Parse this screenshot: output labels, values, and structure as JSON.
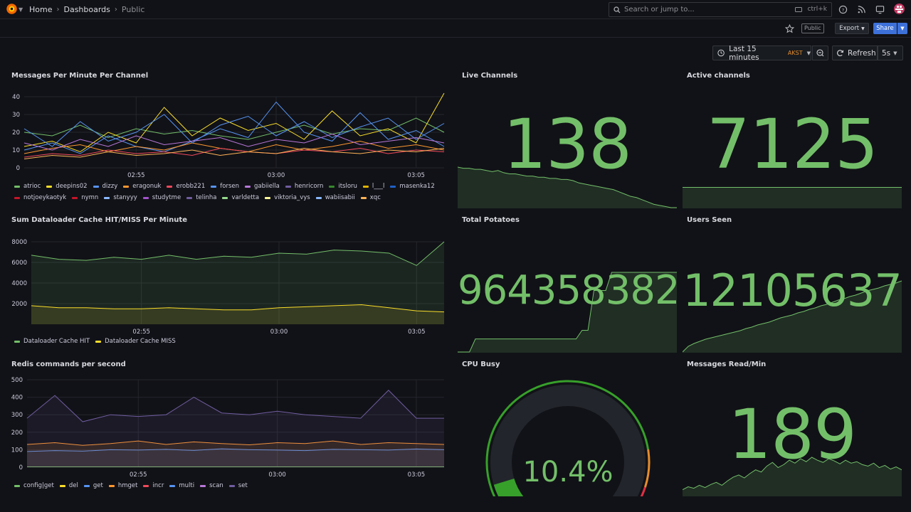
{
  "nav": {
    "breadcrumbs": [
      "Home",
      "Dashboards",
      "Public"
    ],
    "search_placeholder": "Search or jump to...",
    "search_shortcut": "ctrl+k"
  },
  "toolbar": {
    "public_badge": "Public",
    "export_label": "Export",
    "share_label": "Share",
    "time_range": "Last 15 minutes",
    "timezone": "AKST",
    "refresh_label": "Refresh",
    "refresh_interval": "5s"
  },
  "colors": {
    "green": "#73bf69",
    "yellow": "#fade2a",
    "purple": "#b877d9",
    "blue": "#5794f2",
    "orange": "#ff9830",
    "red": "#f2495c"
  },
  "panels": {
    "messages": {
      "title": "Messages Per Minute Per Channel",
      "legend": [
        {
          "name": "atrioc",
          "color": "#73bf69"
        },
        {
          "name": "deepins02",
          "color": "#fade2a"
        },
        {
          "name": "dizzy",
          "color": "#5794f2"
        },
        {
          "name": "eragonuk",
          "color": "#ff9830"
        },
        {
          "name": "erobb221",
          "color": "#f2495c"
        },
        {
          "name": "forsen",
          "color": "#5794f2"
        },
        {
          "name": "gabiiella",
          "color": "#b877d9"
        },
        {
          "name": "henricorn",
          "color": "#705da0"
        },
        {
          "name": "itsloru",
          "color": "#37872d"
        },
        {
          "name": "l___l",
          "color": "#e0b400"
        },
        {
          "name": "masenka12",
          "color": "#1f60c4"
        },
        {
          "name": "notjoeykaotyk",
          "color": "#c4162a"
        },
        {
          "name": "nymn",
          "color": "#c4162a"
        },
        {
          "name": "stanyyy",
          "color": "#8ab8ff"
        },
        {
          "name": "studytme",
          "color": "#a352cc"
        },
        {
          "name": "telinha",
          "color": "#705da0"
        },
        {
          "name": "varldetta",
          "color": "#96d98d"
        },
        {
          "name": "viktoria_vys",
          "color": "#fff899"
        },
        {
          "name": "wabiisabii",
          "color": "#8ab8ff"
        },
        {
          "name": "xqc",
          "color": "#ffb357"
        }
      ]
    },
    "dataloader": {
      "title": "Sum Dataloader Cache HIT/MISS Per Minute",
      "legend": [
        {
          "name": "Dataloader Cache HIT",
          "color": "#73bf69"
        },
        {
          "name": "Dataloader Cache MISS",
          "color": "#fade2a"
        }
      ]
    },
    "redis": {
      "title": "Redis commands per second",
      "legend": [
        {
          "name": "config|get",
          "color": "#73bf69"
        },
        {
          "name": "del",
          "color": "#fade2a"
        },
        {
          "name": "get",
          "color": "#5794f2"
        },
        {
          "name": "hmget",
          "color": "#ff9830"
        },
        {
          "name": "incr",
          "color": "#f2495c"
        },
        {
          "name": "multi",
          "color": "#5794f2"
        },
        {
          "name": "scan",
          "color": "#b877d9"
        },
        {
          "name": "set",
          "color": "#705da0"
        }
      ]
    },
    "live_channels": {
      "title": "Live Channels",
      "value": "138",
      "trend": [
        36,
        35,
        35,
        34,
        34,
        33,
        32,
        33,
        31,
        30,
        30,
        29,
        28,
        28,
        27,
        27,
        26,
        26,
        25,
        25,
        24,
        22,
        21,
        20,
        19,
        18,
        17,
        16,
        14,
        12,
        10,
        9,
        7,
        5,
        3,
        2,
        1,
        0,
        0
      ]
    },
    "active_channels": {
      "title": "Active channels",
      "value": "7125",
      "trend": [
        10,
        10,
        10,
        10,
        10,
        10,
        10,
        10,
        10,
        10,
        10,
        10,
        10,
        10,
        10,
        10,
        10,
        10,
        10,
        10,
        10,
        10,
        10,
        10,
        10,
        10,
        10,
        10,
        10,
        10
      ]
    },
    "total_potatoes": {
      "title": "Total Potatoes",
      "value": "964358382",
      "trend": [
        0,
        0,
        0,
        18,
        18,
        18,
        18,
        18,
        18,
        18,
        18,
        18,
        18,
        18,
        18,
        18,
        18,
        18,
        18,
        18,
        18,
        30,
        30,
        85,
        85,
        85,
        110,
        110,
        110,
        110,
        110,
        110,
        110,
        110,
        110,
        110,
        110,
        110
      ]
    },
    "users_seen": {
      "title": "Users Seen",
      "value": "12105637",
      "trend": [
        0,
        8,
        12,
        15,
        18,
        20,
        22,
        24,
        26,
        28,
        30,
        33,
        35,
        38,
        40,
        42,
        45,
        48,
        50,
        52,
        55,
        57,
        60,
        62,
        65,
        67,
        70,
        73,
        75,
        78,
        80,
        83,
        86,
        88,
        90,
        93,
        95,
        97,
        100
      ]
    },
    "cpu_busy": {
      "title": "CPU Busy",
      "value": "10.4%",
      "percent": 10.4
    },
    "messages_read": {
      "title": "Messages Read/Min",
      "value": "189",
      "trend": [
        8,
        12,
        10,
        14,
        11,
        15,
        18,
        14,
        20,
        25,
        28,
        24,
        30,
        35,
        32,
        40,
        45,
        38,
        42,
        48,
        44,
        50,
        46,
        52,
        48,
        45,
        50,
        47,
        43,
        48,
        44,
        46,
        42,
        40,
        44,
        38,
        41,
        36,
        39,
        35
      ]
    }
  },
  "chart_data": [
    {
      "type": "line",
      "title": "Messages Per Minute Per Channel",
      "x": [
        "02:51",
        "02:52",
        "02:53",
        "02:54",
        "02:55",
        "02:56",
        "02:57",
        "02:58",
        "02:59",
        "03:00",
        "03:01",
        "03:02",
        "03:03",
        "03:04",
        "03:05",
        "03:06"
      ],
      "ylim": [
        0,
        40
      ],
      "ticks": [
        0,
        10,
        20,
        30,
        40
      ],
      "xticks": [
        "02:55",
        "03:00",
        "03:05"
      ],
      "series": [
        {
          "name": "atrioc",
          "values": [
            20,
            18,
            24,
            17,
            22,
            19,
            21,
            18,
            16,
            20,
            24,
            19,
            22,
            21,
            28,
            20
          ]
        },
        {
          "name": "deepins02",
          "values": [
            12,
            15,
            9,
            20,
            14,
            34,
            18,
            28,
            21,
            25,
            16,
            32,
            18,
            22,
            14,
            42
          ]
        },
        {
          "name": "dizzy",
          "values": [
            10,
            14,
            8,
            18,
            12,
            9,
            15,
            22,
            17,
            37,
            20,
            15,
            31,
            16,
            21,
            12
          ]
        },
        {
          "name": "eragonuk",
          "values": [
            8,
            11,
            13,
            9,
            12,
            10,
            14,
            11,
            9,
            13,
            10,
            12,
            15,
            11,
            13,
            10
          ]
        },
        {
          "name": "erobb221",
          "values": [
            6,
            8,
            7,
            10,
            8,
            9,
            7,
            11,
            9,
            8,
            10,
            9,
            11,
            8,
            10,
            9
          ]
        },
        {
          "name": "forsen",
          "values": [
            22,
            12,
            26,
            15,
            20,
            30,
            14,
            24,
            29,
            18,
            26,
            17,
            23,
            28,
            16,
            25
          ]
        },
        {
          "name": "gabiiella",
          "values": [
            14,
            10,
            16,
            12,
            18,
            13,
            15,
            17,
            12,
            16,
            14,
            19,
            13,
            15,
            17,
            14
          ]
        },
        {
          "name": "xqc",
          "values": [
            5,
            7,
            6,
            9,
            7,
            8,
            10,
            7,
            9,
            8,
            11,
            9,
            8,
            10,
            9,
            11
          ]
        }
      ]
    },
    {
      "type": "area",
      "title": "Sum Dataloader Cache HIT/MISS Per Minute",
      "x": [
        "02:51",
        "02:52",
        "02:53",
        "02:54",
        "02:55",
        "02:56",
        "02:57",
        "02:58",
        "02:59",
        "03:00",
        "03:01",
        "03:02",
        "03:03",
        "03:04",
        "03:05",
        "03:06"
      ],
      "ylim": [
        0,
        8000
      ],
      "ticks": [
        2000,
        4000,
        6000,
        8000
      ],
      "xticks": [
        "02:55",
        "03:00",
        "03:05"
      ],
      "series": [
        {
          "name": "Dataloader Cache HIT",
          "values": [
            6700,
            6300,
            6200,
            6500,
            6300,
            6700,
            6300,
            6600,
            6500,
            6900,
            6800,
            7200,
            7100,
            6900,
            5700,
            8000
          ]
        },
        {
          "name": "Dataloader Cache MISS",
          "values": [
            1800,
            1600,
            1600,
            1500,
            1500,
            1600,
            1500,
            1400,
            1400,
            1600,
            1700,
            1800,
            1900,
            1600,
            1300,
            1200
          ]
        }
      ]
    },
    {
      "type": "area",
      "title": "Redis commands per second",
      "x": [
        "02:51",
        "02:52",
        "02:53",
        "02:54",
        "02:55",
        "02:56",
        "02:57",
        "02:58",
        "02:59",
        "03:00",
        "03:01",
        "03:02",
        "03:03",
        "03:04",
        "03:05",
        "03:06"
      ],
      "ylim": [
        0,
        500
      ],
      "ticks": [
        0,
        100,
        200,
        300,
        400,
        500
      ],
      "xticks": [
        "02:55",
        "03:00",
        "03:05"
      ],
      "series": [
        {
          "name": "config|get",
          "values": [
            2,
            2,
            2,
            2,
            2,
            2,
            2,
            2,
            2,
            2,
            2,
            2,
            2,
            2,
            2,
            2
          ]
        },
        {
          "name": "get",
          "values": [
            90,
            95,
            92,
            100,
            98,
            102,
            96,
            105,
            100,
            98,
            95,
            102,
            100,
            98,
            104,
            100
          ]
        },
        {
          "name": "hmget",
          "values": [
            130,
            140,
            125,
            135,
            150,
            130,
            145,
            135,
            128,
            140,
            135,
            150,
            130,
            140,
            135,
            130
          ]
        },
        {
          "name": "set",
          "values": [
            280,
            410,
            260,
            300,
            290,
            300,
            400,
            310,
            300,
            320,
            300,
            290,
            280,
            440,
            280,
            280
          ]
        }
      ]
    }
  ]
}
